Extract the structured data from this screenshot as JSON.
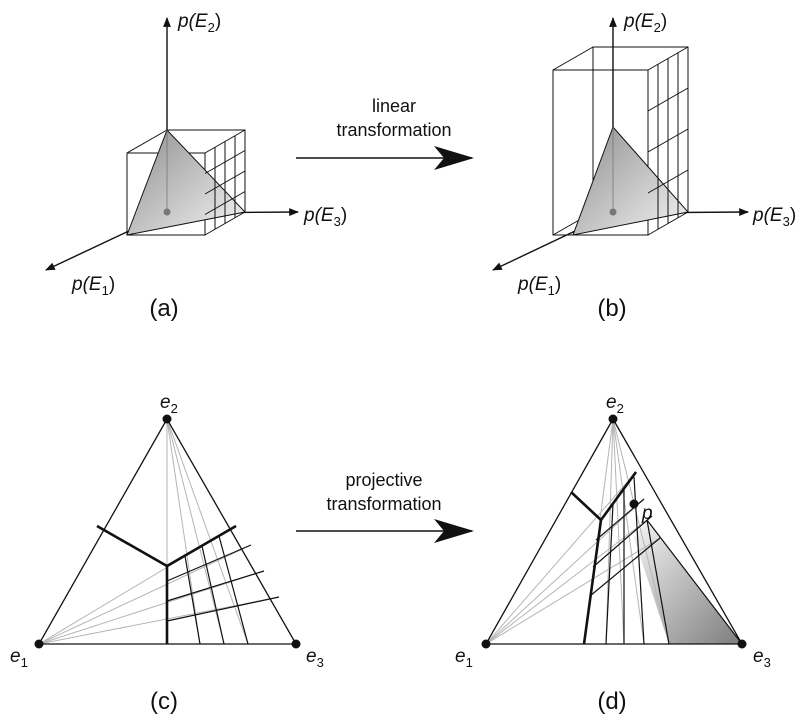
{
  "panels": {
    "a": {
      "caption": "(a)",
      "axis_labels": {
        "e1": {
          "prefix": "p(",
          "var": "E",
          "sub": "1",
          "suffix": ")"
        },
        "e2": {
          "prefix": "p(",
          "var": "E",
          "sub": "2",
          "suffix": ")"
        },
        "e3": {
          "prefix": "p(",
          "var": "E",
          "sub": "3",
          "suffix": ")"
        }
      }
    },
    "b": {
      "caption": "(b)",
      "axis_labels": {
        "e1": {
          "prefix": "p(",
          "var": "E",
          "sub": "1",
          "suffix": ")"
        },
        "e2": {
          "prefix": "p(",
          "var": "E",
          "sub": "2",
          "suffix": ")"
        },
        "e3": {
          "prefix": "p(",
          "var": "E",
          "sub": "3",
          "suffix": ")"
        }
      }
    },
    "c": {
      "caption": "(c)",
      "vertices": {
        "e1": {
          "var": "e",
          "sub": "1"
        },
        "e2": {
          "var": "e",
          "sub": "2"
        },
        "e3": {
          "var": "e",
          "sub": "3"
        }
      }
    },
    "d": {
      "caption": "(d)",
      "vertices": {
        "e1": {
          "var": "e",
          "sub": "1"
        },
        "e2": {
          "var": "e",
          "sub": "2"
        },
        "e3": {
          "var": "e",
          "sub": "3"
        }
      },
      "point_label": "p"
    }
  },
  "arrows": {
    "top": {
      "line1": "linear",
      "line2": "transformation"
    },
    "bottom": {
      "line1": "projective",
      "line2": "transformation"
    }
  },
  "colors": {
    "ink": "#111111",
    "guide_gray": "#b5b5b5",
    "shade_dark": "#8a8a8a",
    "shade_light": "#f2f2f2"
  }
}
